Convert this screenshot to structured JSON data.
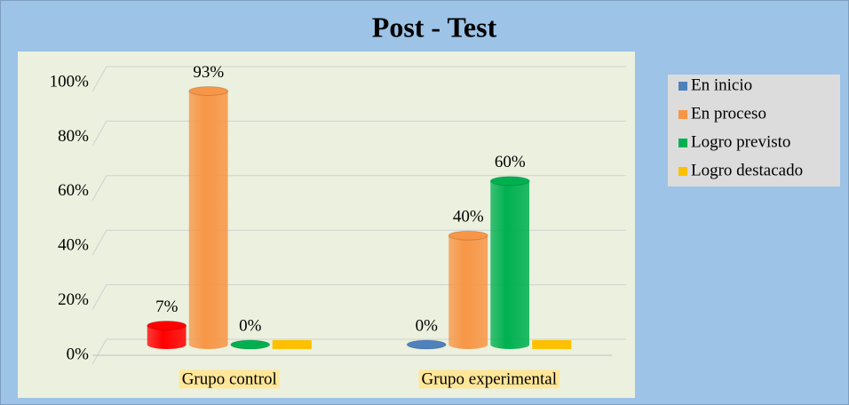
{
  "chart_data": {
    "type": "bar",
    "title": "Post - Test",
    "categories": [
      "Grupo control",
      "Grupo experimental"
    ],
    "series": [
      {
        "name": "En inicio",
        "color": "#4f81bd",
        "point_colors": [
          "#ff0000",
          null
        ],
        "values": [
          7,
          0
        ],
        "value_labels": [
          "7%",
          "0%"
        ]
      },
      {
        "name": "En proceso",
        "color": "#f79646",
        "values": [
          93,
          40
        ],
        "value_labels": [
          "93%",
          "40%"
        ]
      },
      {
        "name": "Logro previsto",
        "color": "#00b050",
        "values": [
          0,
          60
        ],
        "value_labels": [
          "0%",
          "60%"
        ]
      },
      {
        "name": "Logro destacado",
        "color": "#ffc000",
        "values": [
          0,
          0
        ]
      }
    ],
    "ylim": [
      0,
      100
    ],
    "yticks": [
      {
        "value": 0,
        "label": "0%"
      },
      {
        "value": 20,
        "label": "20%"
      },
      {
        "value": 40,
        "label": "40%"
      },
      {
        "value": 60,
        "label": "60%"
      },
      {
        "value": 80,
        "label": "80%"
      },
      {
        "value": 100,
        "label": "100%"
      }
    ],
    "grid": true,
    "legend": "right"
  }
}
